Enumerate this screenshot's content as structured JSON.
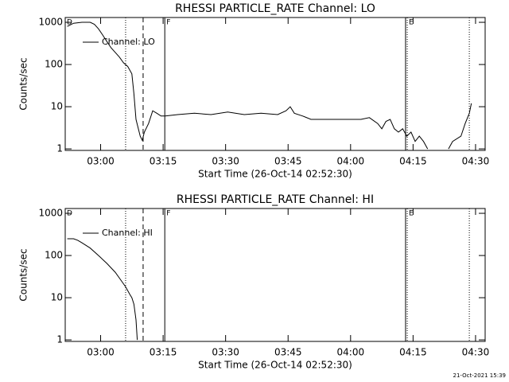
{
  "chart_data": [
    {
      "type": "line",
      "title": "RHESSI PARTICLE_RATE Channel: LO",
      "xlabel": "Start Time (26-Oct-14 02:52:30)",
      "ylabel": "Counts/sec",
      "log_y": true,
      "xlim": [
        -1,
        99.8
      ],
      "ylim": [
        0.92,
        1300
      ],
      "xticks": [
        {
          "value": 7.5,
          "label": "03:00"
        },
        {
          "value": 22.5,
          "label": "03:15"
        },
        {
          "value": 37.5,
          "label": "03:30"
        },
        {
          "value": 52.5,
          "label": "03:45"
        },
        {
          "value": 67.5,
          "label": "04:00"
        },
        {
          "value": 82.5,
          "label": "04:15"
        },
        {
          "value": 97.5,
          "label": "04:30"
        }
      ],
      "yticks": [
        1,
        10,
        100,
        1000
      ],
      "markers": [
        {
          "x": 13.5,
          "style": "dotted"
        },
        {
          "x": 17.7,
          "style": "dashed"
        },
        {
          "x": 22.9,
          "style": "solid",
          "label": "F"
        },
        {
          "x": 80.7,
          "style": "solid"
        },
        {
          "x": 81.1,
          "style": "dotted",
          "label": "E"
        },
        {
          "x": 96,
          "style": "dotted"
        }
      ],
      "corner_label": "D",
      "series": [
        {
          "name": "Channel: LO",
          "color": "#000000",
          "x": [
            -0.5,
            1,
            3,
            5,
            6,
            7,
            8,
            9,
            10,
            12,
            13,
            14,
            15,
            15.5,
            16,
            17,
            17.5,
            18,
            19,
            20,
            21,
            22,
            23,
            26,
            30,
            34,
            38,
            42,
            46,
            50,
            52,
            53,
            54,
            56,
            58,
            62,
            66,
            70,
            72,
            74,
            75,
            76,
            77,
            78,
            79,
            80,
            81,
            82,
            83,
            84,
            85,
            86,
            88,
            91,
            92,
            94,
            95,
            96,
            96.5
          ],
          "values": [
            800,
            950,
            1000,
            1000,
            900,
            700,
            500,
            350,
            250,
            150,
            110,
            90,
            60,
            20,
            5,
            2,
            1.6,
            2.5,
            4,
            8,
            7,
            6,
            6,
            6.5,
            7,
            6.5,
            7.5,
            6.5,
            7,
            6.5,
            8,
            10,
            7,
            6,
            5,
            5,
            5,
            5,
            5.5,
            4,
            3,
            4.5,
            5,
            3,
            2.5,
            3,
            2,
            2.5,
            1.5,
            2,
            1.5,
            1,
            null,
            1,
            1.5,
            2,
            4,
            7,
            12
          ]
        }
      ]
    },
    {
      "type": "line",
      "title": "RHESSI PARTICLE_RATE Channel: HI",
      "xlabel": "Start Time (26-Oct-14 02:52:30)",
      "ylabel": "Counts/sec",
      "log_y": true,
      "xlim": [
        -1,
        99.8
      ],
      "ylim": [
        0.92,
        1300
      ],
      "xticks": [
        {
          "value": 7.5,
          "label": "03:00"
        },
        {
          "value": 22.5,
          "label": "03:15"
        },
        {
          "value": 37.5,
          "label": "03:30"
        },
        {
          "value": 52.5,
          "label": "03:45"
        },
        {
          "value": 67.5,
          "label": "04:00"
        },
        {
          "value": 82.5,
          "label": "04:15"
        },
        {
          "value": 97.5,
          "label": "04:30"
        }
      ],
      "yticks": [
        1,
        10,
        100,
        1000
      ],
      "markers": [
        {
          "x": 13.5,
          "style": "dotted"
        },
        {
          "x": 17.7,
          "style": "dashed"
        },
        {
          "x": 22.9,
          "style": "solid",
          "label": "F"
        },
        {
          "x": 80.7,
          "style": "solid"
        },
        {
          "x": 81.1,
          "style": "dotted",
          "label": "E"
        },
        {
          "x": 96,
          "style": "dotted"
        }
      ],
      "corner_label": "D",
      "series": [
        {
          "name": "Channel: HI",
          "color": "#000000",
          "x": [
            -0.5,
            1,
            2,
            3,
            5,
            7,
            9,
            11,
            12.5,
            13.5,
            14.5,
            15,
            15.5,
            16,
            16.3
          ],
          "values": [
            250,
            250,
            230,
            200,
            150,
            100,
            65,
            40,
            25,
            18,
            12,
            10,
            7,
            3,
            1
          ]
        }
      ]
    }
  ],
  "footer": "21-Oct-2021 15:39"
}
